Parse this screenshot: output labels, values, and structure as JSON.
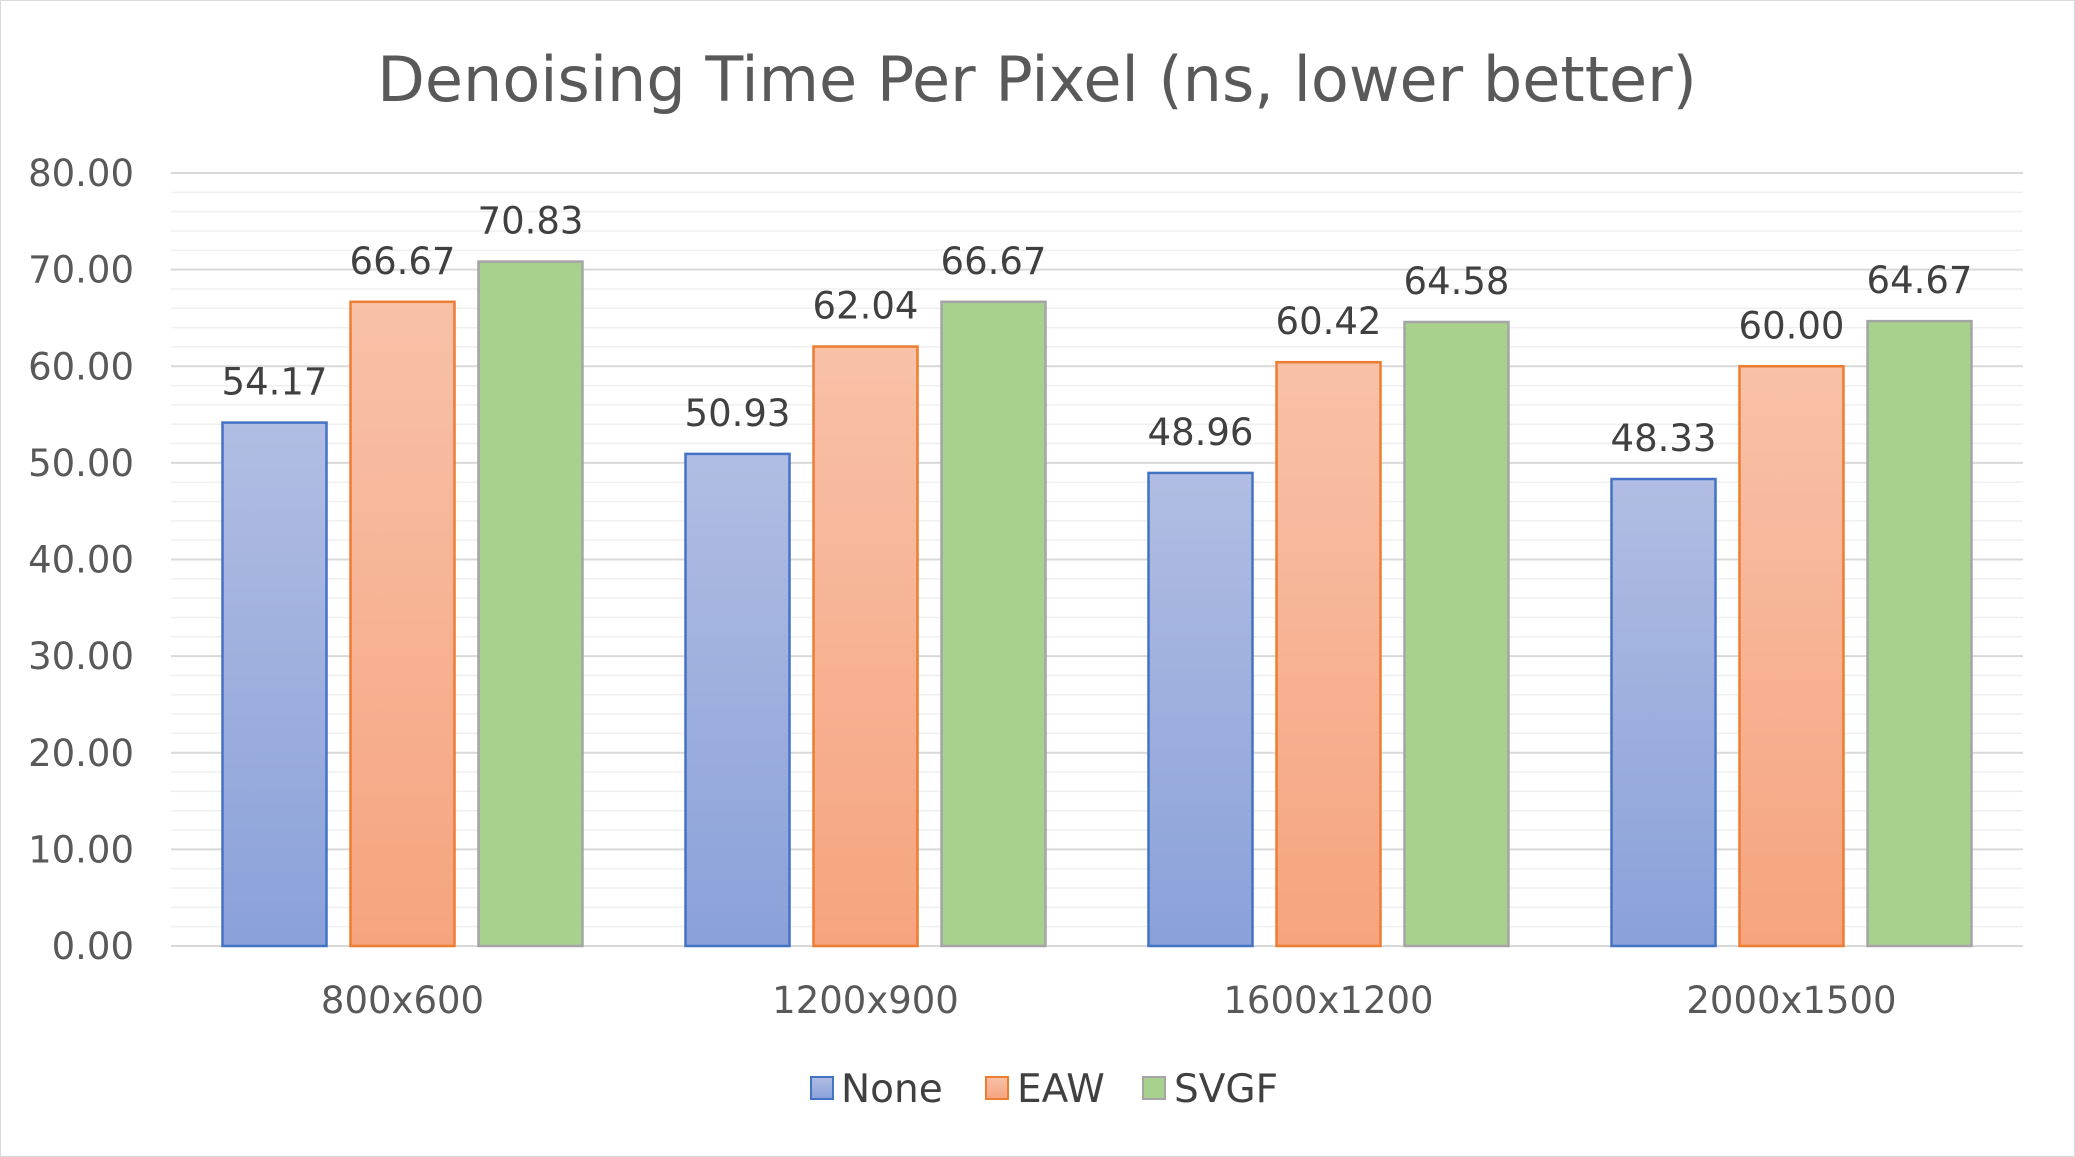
{
  "chart_data": {
    "type": "bar",
    "title": "Denoising Time Per Pixel (ns, lower better)",
    "xlabel": "",
    "ylabel": "",
    "categories": [
      "800x600",
      "1200x900",
      "1600x1200",
      "2000x1500"
    ],
    "series": [
      {
        "name": "None",
        "values": [
          54.17,
          50.93,
          48.96,
          48.33
        ],
        "labels": [
          "54.17",
          "50.93",
          "48.96",
          "48.33"
        ],
        "color": "#8ea4d9",
        "border": "#4472c4"
      },
      {
        "name": "EAW",
        "values": [
          66.67,
          62.04,
          60.42,
          60.0
        ],
        "labels": [
          "66.67",
          "62.04",
          "60.42",
          "60.00"
        ],
        "color": "#f6a986",
        "border": "#ed7d31"
      },
      {
        "name": "SVGF",
        "values": [
          70.83,
          66.67,
          64.58,
          64.67
        ],
        "labels": [
          "70.83",
          "66.67",
          "64.58",
          "64.67"
        ],
        "color": "#a9d18e",
        "border": "#a5a5a5"
      }
    ],
    "ylim": [
      0,
      80
    ],
    "yticks": [
      "0.00",
      "10.00",
      "20.00",
      "30.00",
      "40.00",
      "50.00",
      "60.00",
      "70.00",
      "80.00"
    ],
    "ytick_values": [
      0,
      10,
      20,
      30,
      40,
      50,
      60,
      70,
      80
    ],
    "minor_step": 2,
    "grid": true,
    "legend_position": "bottom"
  }
}
